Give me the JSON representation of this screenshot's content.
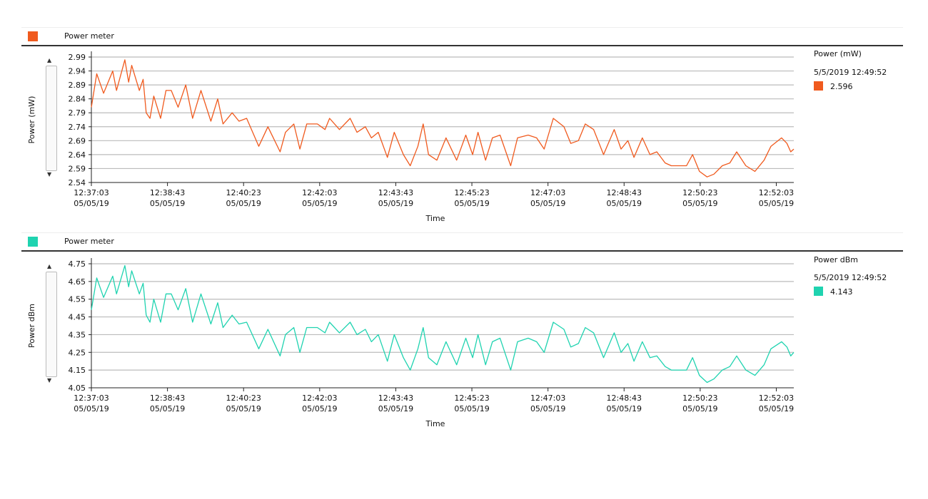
{
  "charts": [
    {
      "header": "Power meter",
      "color": "#f05a1e",
      "legend_title": "Power (mW)",
      "legend_time": "5/5/2019 12:49:52",
      "legend_value": "2.596"
    },
    {
      "header": "Power meter",
      "color": "#1fd3b0",
      "legend_title": "Power dBm",
      "legend_time": "5/5/2019 12:49:52",
      "legend_value": "4.143"
    }
  ],
  "chart_data": [
    {
      "type": "line",
      "title": "Power meter",
      "xlabel": "Time",
      "ylabel": "Power (mW)",
      "ylim": [
        2.54,
        2.99
      ],
      "yticks": [
        "2.54",
        "2.59",
        "2.64",
        "2.69",
        "2.74",
        "2.79",
        "2.84",
        "2.89",
        "2.94",
        "2.99"
      ],
      "xticks": [
        [
          "12:37:03",
          "05/05/19"
        ],
        [
          "12:38:43",
          "05/05/19"
        ],
        [
          "12:40:23",
          "05/05/19"
        ],
        [
          "12:42:03",
          "05/05/19"
        ],
        [
          "12:43:43",
          "05/05/19"
        ],
        [
          "12:45:23",
          "05/05/19"
        ],
        [
          "12:47:03",
          "05/05/19"
        ],
        [
          "12:48:43",
          "05/05/19"
        ],
        [
          "12:50:23",
          "05/05/19"
        ],
        [
          "12:52:03",
          "05/05/19"
        ]
      ],
      "x_unit": "seconds since 12:37:03",
      "xlim": [
        0,
        923
      ],
      "grid": true,
      "x": [
        0,
        7,
        16,
        28,
        33,
        44,
        49,
        53,
        63,
        68,
        72,
        77,
        82,
        91,
        98,
        105,
        114,
        124,
        133,
        144,
        157,
        166,
        173,
        185,
        194,
        204,
        220,
        232,
        248,
        255,
        266,
        274,
        283,
        297,
        307,
        313,
        326,
        340,
        349,
        360,
        368,
        377,
        389,
        398,
        410,
        419,
        429,
        436,
        443,
        454,
        466,
        480,
        492,
        501,
        508,
        518,
        527,
        537,
        551,
        560,
        574,
        585,
        595,
        607,
        621,
        630,
        640,
        649,
        660,
        673,
        687,
        696,
        705,
        713,
        724,
        734,
        743,
        754,
        762,
        773,
        782,
        790,
        799,
        809,
        818,
        829,
        839,
        848,
        860,
        872,
        884,
        893,
        907,
        914,
        919,
        923
      ],
      "values": [
        2.81,
        2.93,
        2.86,
        2.94,
        2.87,
        2.98,
        2.9,
        2.96,
        2.87,
        2.91,
        2.79,
        2.77,
        2.85,
        2.77,
        2.87,
        2.87,
        2.81,
        2.89,
        2.77,
        2.87,
        2.76,
        2.84,
        2.75,
        2.79,
        2.76,
        2.77,
        2.67,
        2.74,
        2.65,
        2.72,
        2.75,
        2.66,
        2.75,
        2.75,
        2.73,
        2.77,
        2.73,
        2.77,
        2.72,
        2.74,
        2.7,
        2.72,
        2.63,
        2.72,
        2.64,
        2.6,
        2.67,
        2.75,
        2.64,
        2.62,
        2.7,
        2.62,
        2.71,
        2.64,
        2.72,
        2.62,
        2.7,
        2.71,
        2.6,
        2.7,
        2.71,
        2.7,
        2.66,
        2.77,
        2.74,
        2.68,
        2.69,
        2.75,
        2.73,
        2.64,
        2.73,
        2.66,
        2.69,
        2.63,
        2.7,
        2.64,
        2.65,
        2.61,
        2.6,
        2.6,
        2.6,
        2.64,
        2.58,
        2.56,
        2.57,
        2.6,
        2.61,
        2.65,
        2.6,
        2.58,
        2.62,
        2.67,
        2.7,
        2.68,
        2.65,
        2.66
      ]
    },
    {
      "type": "line",
      "title": "Power meter",
      "xlabel": "Time",
      "ylabel": "Power dBm",
      "ylim": [
        4.05,
        4.75
      ],
      "yticks": [
        "4.05",
        "4.15",
        "4.25",
        "4.35",
        "4.45",
        "4.55",
        "4.65",
        "4.75"
      ],
      "xticks": [
        [
          "12:37:03",
          "05/05/19"
        ],
        [
          "12:38:43",
          "05/05/19"
        ],
        [
          "12:40:23",
          "05/05/19"
        ],
        [
          "12:42:03",
          "05/05/19"
        ],
        [
          "12:43:43",
          "05/05/19"
        ],
        [
          "12:45:23",
          "05/05/19"
        ],
        [
          "12:47:03",
          "05/05/19"
        ],
        [
          "12:48:43",
          "05/05/19"
        ],
        [
          "12:50:23",
          "05/05/19"
        ],
        [
          "12:52:03",
          "05/05/19"
        ]
      ],
      "x_unit": "seconds since 12:37:03",
      "xlim": [
        0,
        923
      ],
      "grid": true,
      "x": [
        0,
        7,
        16,
        28,
        33,
        44,
        49,
        53,
        63,
        68,
        72,
        77,
        82,
        91,
        98,
        105,
        114,
        124,
        133,
        144,
        157,
        166,
        173,
        185,
        194,
        204,
        220,
        232,
        248,
        255,
        266,
        274,
        283,
        297,
        307,
        313,
        326,
        340,
        349,
        360,
        368,
        377,
        389,
        398,
        410,
        419,
        429,
        436,
        443,
        454,
        466,
        480,
        492,
        501,
        508,
        518,
        527,
        537,
        551,
        560,
        574,
        585,
        595,
        607,
        621,
        630,
        640,
        649,
        660,
        673,
        687,
        696,
        705,
        713,
        724,
        734,
        743,
        754,
        762,
        773,
        782,
        790,
        799,
        809,
        818,
        829,
        839,
        848,
        860,
        872,
        884,
        893,
        907,
        914,
        919,
        923
      ],
      "values": [
        4.49,
        4.67,
        4.56,
        4.68,
        4.58,
        4.74,
        4.62,
        4.71,
        4.58,
        4.64,
        4.46,
        4.42,
        4.55,
        4.42,
        4.58,
        4.58,
        4.49,
        4.61,
        4.42,
        4.58,
        4.41,
        4.53,
        4.39,
        4.46,
        4.41,
        4.42,
        4.27,
        4.38,
        4.23,
        4.35,
        4.39,
        4.25,
        4.39,
        4.39,
        4.36,
        4.42,
        4.36,
        4.42,
        4.35,
        4.38,
        4.31,
        4.35,
        4.2,
        4.35,
        4.22,
        4.15,
        4.27,
        4.39,
        4.22,
        4.18,
        4.31,
        4.18,
        4.33,
        4.22,
        4.35,
        4.18,
        4.31,
        4.33,
        4.15,
        4.31,
        4.33,
        4.31,
        4.25,
        4.42,
        4.38,
        4.28,
        4.3,
        4.39,
        4.36,
        4.22,
        4.36,
        4.25,
        4.3,
        4.2,
        4.31,
        4.22,
        4.23,
        4.17,
        4.15,
        4.15,
        4.15,
        4.22,
        4.12,
        4.08,
        4.1,
        4.15,
        4.17,
        4.23,
        4.15,
        4.12,
        4.18,
        4.27,
        4.31,
        4.28,
        4.23,
        4.25
      ]
    }
  ]
}
